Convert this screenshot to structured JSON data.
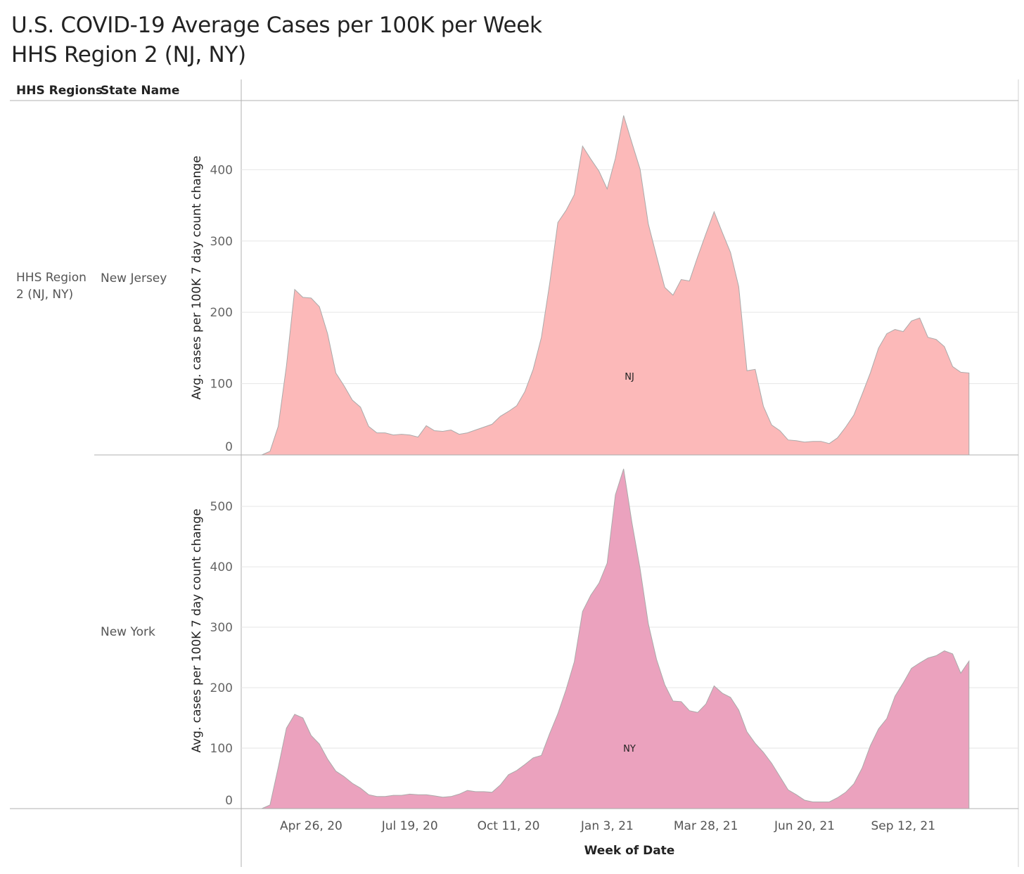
{
  "title": {
    "line1": "U.S. COVID-19 Average Cases per 100K  per Week",
    "line2": "HHS Region 2 (NJ, NY)"
  },
  "headers": {
    "region": "HHS Regions",
    "state": "State Name"
  },
  "region_label": "HHS Region 2 (NJ, NY)",
  "colors": {
    "nj_fill": "#fcb9b9",
    "ny_fill": "#eba2be",
    "area_stroke": "#aaaaaa",
    "grid": "#e6e6e6",
    "axis": "#b0b0b0"
  },
  "chart_data": {
    "type": "area",
    "xlabel": "Week of Date",
    "ylabel": "Avg. cases per 100K 7 day count change",
    "x_ticks": [
      {
        "label": "Apr 26, 20",
        "week": 6
      },
      {
        "label": "Jul 19, 20",
        "week": 18
      },
      {
        "label": "Oct 11, 20",
        "week": 30
      },
      {
        "label": "Jan 3, 21",
        "week": 42
      },
      {
        "label": "Mar 28, 21",
        "week": 54
      },
      {
        "label": "Jun 20, 21",
        "week": 66
      },
      {
        "label": "Sep 12, 21",
        "week": 78
      }
    ],
    "x_domain": [
      -2.5,
      92
    ],
    "panels": [
      {
        "state": "New Jersey",
        "mark_label": "NJ",
        "ylim": [
          0,
          497
        ],
        "yticks": [
          0,
          100,
          200,
          300,
          400
        ],
        "values": [
          0,
          5,
          40,
          125,
          232,
          221,
          220,
          208,
          170,
          115,
          97,
          77,
          67,
          40,
          31,
          31,
          28,
          29,
          28,
          25,
          41,
          34,
          33,
          35,
          29,
          31,
          35,
          39,
          43,
          54,
          61,
          69,
          89,
          120,
          165,
          240,
          326,
          343,
          365,
          433,
          415,
          398,
          373,
          416,
          476,
          438,
          401,
          324,
          279,
          235,
          224,
          246,
          244,
          278,
          310,
          341,
          312,
          284,
          236,
          118,
          120,
          68,
          42,
          34,
          21,
          20,
          18,
          19,
          19,
          16,
          24,
          39,
          56,
          85,
          115,
          150,
          170,
          176,
          173,
          188,
          192,
          165,
          162,
          152,
          124,
          116,
          115
        ]
      },
      {
        "state": "New York",
        "mark_label": "NY",
        "ylim": [
          0,
          585
        ],
        "yticks": [
          0,
          100,
          200,
          300,
          400,
          500
        ],
        "values": [
          0,
          6,
          68,
          133,
          156,
          150,
          121,
          107,
          82,
          62,
          53,
          42,
          34,
          23,
          20,
          20,
          22,
          22,
          24,
          23,
          23,
          21,
          19,
          20,
          24,
          30,
          28,
          28,
          27,
          39,
          56,
          63,
          73,
          84,
          88,
          124,
          157,
          197,
          243,
          326,
          353,
          373,
          406,
          519,
          562,
          474,
          397,
          306,
          247,
          205,
          178,
          177,
          162,
          159,
          173,
          203,
          191,
          184,
          163,
          127,
          108,
          93,
          75,
          53,
          31,
          23,
          14,
          11,
          11,
          11,
          18,
          27,
          41,
          67,
          104,
          132,
          149,
          186,
          208,
          232,
          241,
          249,
          253,
          261,
          256,
          224,
          244
        ]
      }
    ]
  }
}
